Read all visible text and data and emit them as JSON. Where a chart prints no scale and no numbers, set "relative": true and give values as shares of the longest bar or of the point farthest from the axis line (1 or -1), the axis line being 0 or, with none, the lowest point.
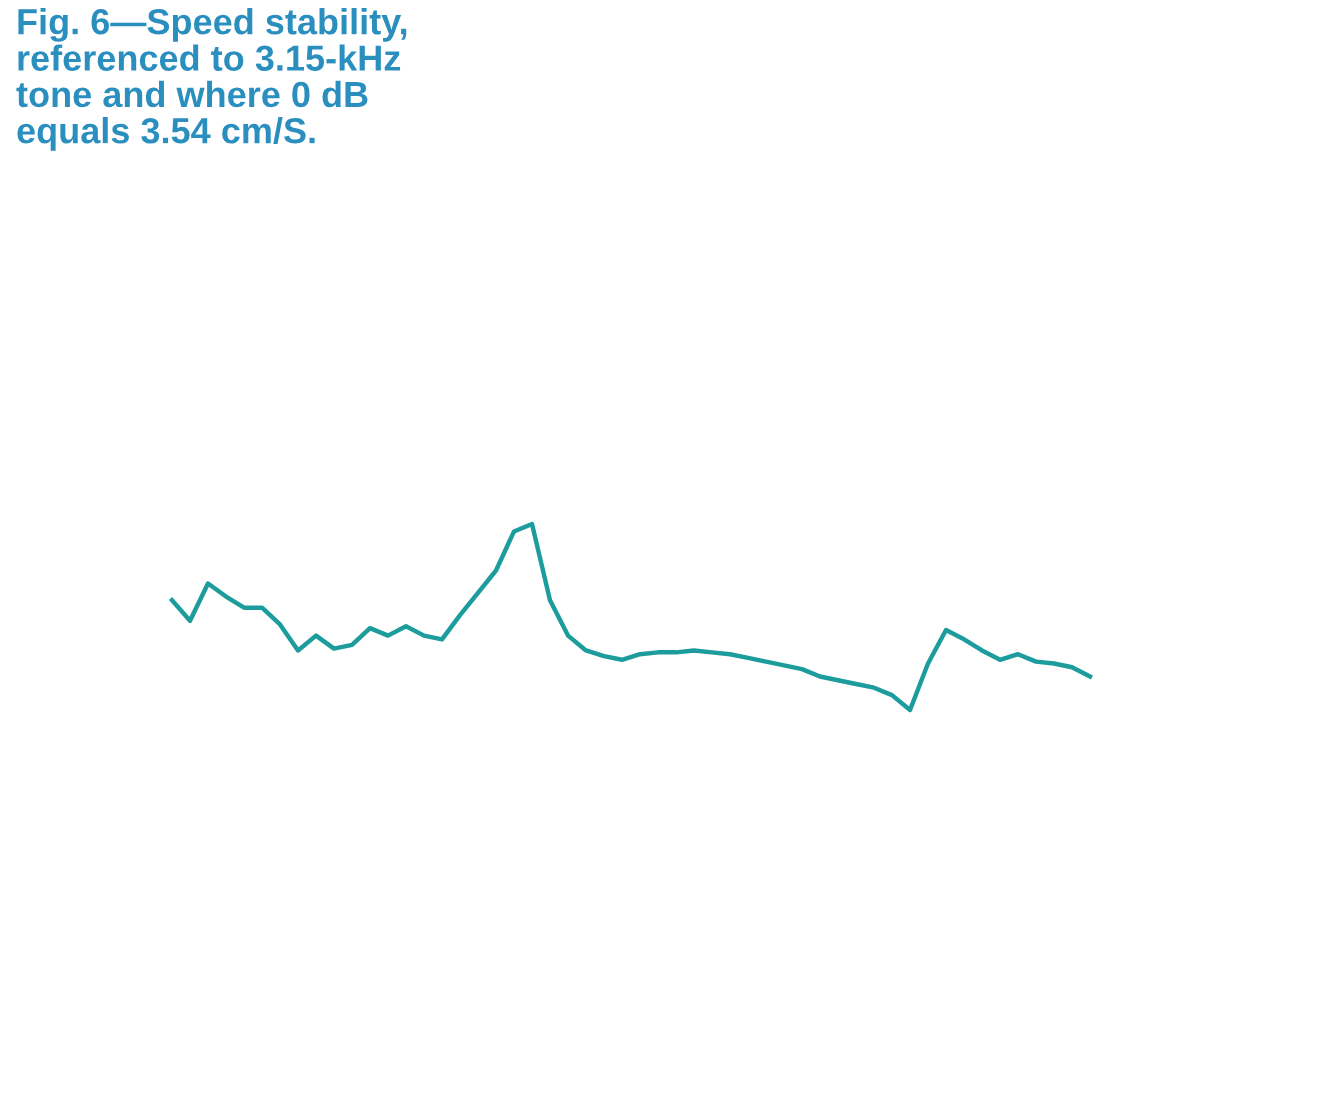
{
  "chart_data": {
    "type": "line",
    "title": "Fig. 6—Speed stability,\nreferenced to 3.15-kHz\ntone and where 0 dB\nequals 3.54 cm/S.",
    "relative": true,
    "categories": [
      null,
      null,
      null,
      null,
      null,
      null,
      null,
      null,
      null,
      null,
      null,
      null,
      null,
      null,
      null,
      null,
      null,
      null,
      null,
      null,
      null,
      null,
      null,
      null,
      null,
      null,
      null,
      null,
      null,
      null,
      null,
      null,
      null,
      null,
      null,
      null,
      null,
      null,
      null,
      null,
      null,
      null,
      null,
      null,
      null,
      null,
      null,
      null,
      null,
      null,
      null,
      null
    ],
    "series": [
      {
        "color": "#1c9c9c",
        "values": [
          0.59,
          0.48,
          0.68,
          0.61,
          0.55,
          0.55,
          0.46,
          0.32,
          0.4,
          0.33,
          0.35,
          0.44,
          0.4,
          0.45,
          0.4,
          0.38,
          0.51,
          0.63,
          0.75,
          0.96,
          1,
          0.59,
          0.4,
          0.32,
          0.29,
          0.27,
          0.3,
          0.31,
          0.31,
          0.32,
          0.31,
          0.3,
          0.28,
          0.26,
          0.24,
          0.22,
          0.18,
          0.16,
          0.14,
          0.12,
          0.08,
          0,
          0.25,
          0.43,
          0.38,
          0.32,
          0.27,
          0.3,
          0.26,
          0.25,
          0.23,
          0.18
        ]
      }
    ]
  }
}
